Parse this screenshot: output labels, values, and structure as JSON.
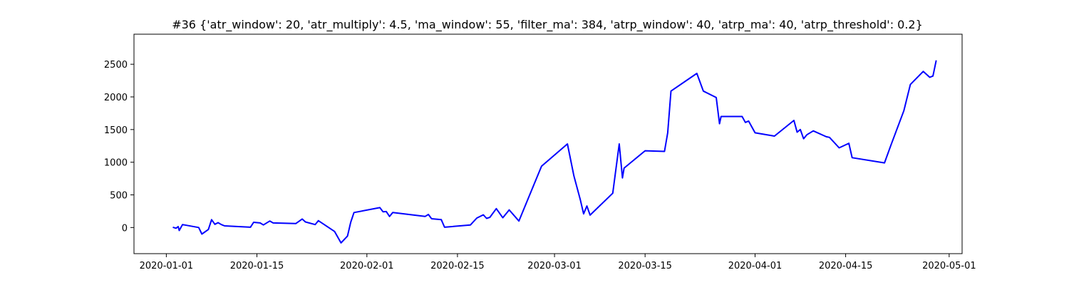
{
  "chart_data": {
    "type": "line",
    "title": "#36 {'atr_window': 20, 'atr_multiply': 4.5, 'ma_window': 55, 'filter_ma': 384, 'atrp_window': 40, 'atrp_ma': 40, 'atrp_threshold': 0.2}",
    "xlabel": "",
    "ylabel": "",
    "xlim": [
      "2019-12-27",
      "2020-05-03"
    ],
    "ylim": [
      -400,
      2960
    ],
    "grid": false,
    "line_color": "#0000ff",
    "x_ticks": [
      "2020-01-01",
      "2020-01-15",
      "2020-02-01",
      "2020-02-15",
      "2020-03-01",
      "2020-03-15",
      "2020-04-01",
      "2020-04-15",
      "2020-05-01"
    ],
    "y_ticks": [
      0,
      500,
      1000,
      1500,
      2000,
      2500
    ],
    "series": [
      {
        "x": [
          "2020-01-02",
          "2020-01-02T12:00",
          "2020-01-02T20:00",
          "2020-01-03",
          "2020-01-03T12:00",
          "2020-01-06",
          "2020-01-06T12:00",
          "2020-01-07T12:00",
          "2020-01-08",
          "2020-01-08T12:00",
          "2020-01-09",
          "2020-01-09T12:00",
          "2020-01-10",
          "2020-01-14",
          "2020-01-14T12:00",
          "2020-01-15T12:00",
          "2020-01-16",
          "2020-01-17",
          "2020-01-17T12:00",
          "2020-01-21",
          "2020-01-22",
          "2020-01-22T12:00",
          "2020-01-24",
          "2020-01-24T12:00",
          "2020-01-27",
          "2020-01-28",
          "2020-01-29",
          "2020-01-29T12:00",
          "2020-01-30",
          "2020-02-03",
          "2020-02-03T12:00",
          "2020-02-04",
          "2020-02-04T12:00",
          "2020-02-05",
          "2020-02-10",
          "2020-02-10T12:00",
          "2020-02-11",
          "2020-02-12T12:00",
          "2020-02-13",
          "2020-02-17",
          "2020-02-18",
          "2020-02-19",
          "2020-02-19T12:00",
          "2020-02-20",
          "2020-02-21",
          "2020-02-22",
          "2020-02-23",
          "2020-02-24T12:00",
          "2020-02-28",
          "2020-03-03",
          "2020-03-04",
          "2020-03-05",
          "2020-03-05T12:00",
          "2020-03-06",
          "2020-03-06T12:00",
          "2020-03-10",
          "2020-03-11",
          "2020-03-11T12:00",
          "2020-03-11T18:00",
          "2020-03-12",
          "2020-03-15",
          "2020-03-18",
          "2020-03-18T12:00",
          "2020-03-19",
          "2020-03-23",
          "2020-03-24",
          "2020-03-26",
          "2020-03-26T12:00",
          "2020-03-26T18:00",
          "2020-03-28",
          "2020-03-30",
          "2020-03-30T12:00",
          "2020-03-31",
          "2020-04-01",
          "2020-04-04",
          "2020-04-07",
          "2020-04-07T12:00",
          "2020-04-08",
          "2020-04-08T12:00",
          "2020-04-09",
          "2020-04-10",
          "2020-04-12",
          "2020-04-12T12:00",
          "2020-04-14",
          "2020-04-15T12:00",
          "2020-04-16",
          "2020-04-21",
          "2020-04-22",
          "2020-04-24",
          "2020-04-25",
          "2020-04-27",
          "2020-04-28",
          "2020-04-28T12:00",
          "2020-04-29"
        ],
        "values": [
          5,
          -10,
          15,
          -45,
          45,
          0,
          -100,
          -30,
          120,
          50,
          75,
          45,
          25,
          5,
          80,
          70,
          40,
          100,
          70,
          60,
          130,
          85,
          45,
          105,
          -60,
          -235,
          -130,
          80,
          230,
          305,
          240,
          245,
          170,
          230,
          170,
          200,
          135,
          120,
          5,
          40,
          145,
          195,
          140,
          155,
          290,
          150,
          270,
          100,
          940,
          1280,
          790,
          420,
          210,
          330,
          190,
          525,
          1280,
          760,
          910,
          930,
          1175,
          1165,
          1450,
          2090,
          2360,
          2090,
          1990,
          1590,
          1700,
          1700,
          1700,
          1610,
          1630,
          1450,
          1400,
          1640,
          1460,
          1500,
          1360,
          1420,
          1480,
          1390,
          1380,
          1220,
          1290,
          1070,
          990,
          1260,
          1790,
          2190,
          2390,
          2300,
          2320,
          2560
        ]
      }
    ]
  }
}
